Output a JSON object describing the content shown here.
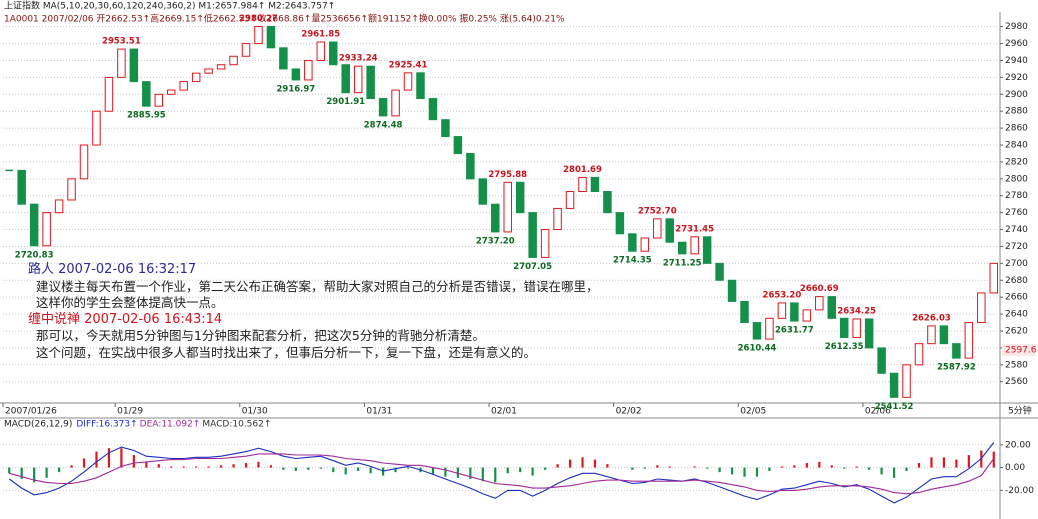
{
  "chart_data": [
    {
      "type": "candlestick",
      "title": "上证指数 MA(5,10,20,30,60,120,240,360,2) M1:2657.984↑ M2:2643.757↑",
      "subtitle": "1A0001 2007/02/06 开2662.53↑高2669.15↑低2662.53↑收2668.86↑量2536656↑额191152↑换0.00% 振0.25% 涨(5.64)0.21%",
      "categories": [
        "2007/01/26",
        null,
        null,
        null,
        null,
        null,
        null,
        null,
        null,
        "01/29",
        null,
        null,
        null,
        null,
        null,
        null,
        null,
        null,
        null,
        "01/30",
        null,
        null,
        null,
        null,
        null,
        null,
        null,
        null,
        null,
        "01/31",
        null,
        null,
        null,
        null,
        null,
        null,
        null,
        null,
        null,
        "02/01",
        null,
        null,
        null,
        null,
        null,
        null,
        null,
        null,
        null,
        "02/02",
        null,
        null,
        null,
        null,
        null,
        null,
        null,
        null,
        null,
        "02/05",
        null,
        null,
        null,
        null,
        null,
        null,
        null,
        null,
        null,
        "02/06",
        null,
        null,
        null,
        null,
        null,
        null,
        null,
        null,
        null,
        null
      ],
      "values": [
        2810,
        2770,
        2720.83,
        2760,
        2775,
        2800,
        2840,
        2880,
        2920,
        2953.51,
        2915,
        2885.95,
        2900,
        2905,
        2915,
        2925,
        2930,
        2935,
        2945,
        2960,
        2980.27,
        2955,
        2930,
        2916.97,
        2940,
        2961.85,
        2935,
        2901.91,
        2933.24,
        2895,
        2874.48,
        2905,
        2925.41,
        2895,
        2870,
        2850,
        2830,
        2800,
        2770,
        2737.2,
        2795.88,
        2760,
        2707.05,
        2740,
        2765,
        2785,
        2801.69,
        2785,
        2760,
        2735,
        2714.35,
        2730,
        2752.7,
        2725,
        2711.25,
        2731.45,
        2700,
        2680,
        2655,
        2630,
        2610.44,
        2635,
        2653.2,
        2631.77,
        2645,
        2660.69,
        2635,
        2612.35,
        2634.25,
        2600,
        2570,
        2541.52,
        2580,
        2605,
        2626.03,
        2605,
        2587.92,
        2630,
        2665,
        2700
      ],
      "up_color": "#e0161e",
      "down_color": "#14904a",
      "ylim": [
        2536,
        2995
      ],
      "yticks": [
        2560,
        2580,
        2600,
        2620,
        2640,
        2660,
        2680,
        2700,
        2720,
        2740,
        2760,
        2780,
        2800,
        2820,
        2840,
        2860,
        2880,
        2900,
        2920,
        2940,
        2960,
        2980
      ],
      "grid": true,
      "last_price": 2597.6,
      "period_label": "5分钟",
      "annotations": [
        {
          "x": 2,
          "y": 2720.83,
          "label": "2720.83",
          "color": "#0a6a1e"
        },
        {
          "x": 9,
          "y": 2953.51,
          "label": "2953.51",
          "color": "#c8141c"
        },
        {
          "x": 11,
          "y": 2885.95,
          "label": "2885.95",
          "color": "#0a6a1e"
        },
        {
          "x": 20,
          "y": 2980.27,
          "label": "2980.27",
          "color": "#c8141c"
        },
        {
          "x": 23,
          "y": 2916.97,
          "label": "2916.97",
          "color": "#0a6a1e"
        },
        {
          "x": 25,
          "y": 2961.85,
          "label": "2961.85",
          "color": "#c8141c"
        },
        {
          "x": 27,
          "y": 2901.91,
          "label": "2901.91",
          "color": "#0a6a1e"
        },
        {
          "x": 28,
          "y": 2933.24,
          "label": "2933.24",
          "color": "#c8141c"
        },
        {
          "x": 30,
          "y": 2874.48,
          "label": "2874.48",
          "color": "#0a6a1e"
        },
        {
          "x": 32,
          "y": 2925.41,
          "label": "2925.41",
          "color": "#c8141c"
        },
        {
          "x": 39,
          "y": 2737.2,
          "label": "2737.20",
          "color": "#0a6a1e"
        },
        {
          "x": 40,
          "y": 2795.88,
          "label": "2795.88",
          "color": "#c8141c"
        },
        {
          "x": 42,
          "y": 2707.05,
          "label": "2707.05",
          "color": "#0a6a1e"
        },
        {
          "x": 46,
          "y": 2801.69,
          "label": "2801.69",
          "color": "#c8141c"
        },
        {
          "x": 50,
          "y": 2714.35,
          "label": "2714.35",
          "color": "#0a6a1e"
        },
        {
          "x": 52,
          "y": 2752.7,
          "label": "2752.70",
          "color": "#c8141c"
        },
        {
          "x": 54,
          "y": 2711.25,
          "label": "2711.25",
          "color": "#0a6a1e"
        },
        {
          "x": 55,
          "y": 2731.45,
          "label": "2731.45",
          "color": "#c8141c"
        },
        {
          "x": 60,
          "y": 2610.44,
          "label": "2610.44",
          "color": "#0a6a1e"
        },
        {
          "x": 62,
          "y": 2653.2,
          "label": "2653.20",
          "color": "#c8141c"
        },
        {
          "x": 63,
          "y": 2631.77,
          "label": "2631.77",
          "color": "#0a6a1e"
        },
        {
          "x": 65,
          "y": 2660.69,
          "label": "2660.69",
          "color": "#c8141c"
        },
        {
          "x": 67,
          "y": 2612.35,
          "label": "2612.35",
          "color": "#0a6a1e"
        },
        {
          "x": 68,
          "y": 2634.25,
          "label": "2634.25",
          "color": "#c8141c"
        },
        {
          "x": 71,
          "y": 2541.52,
          "label": "2541.52",
          "color": "#0a6a1e"
        },
        {
          "x": 74,
          "y": 2626.03,
          "label": "2626.03",
          "color": "#c8141c"
        },
        {
          "x": 76,
          "y": 2587.92,
          "label": "2587.92",
          "color": "#0a6a1e"
        }
      ]
    },
    {
      "type": "macd",
      "title": "MACD(26,12,9)",
      "series": [
        {
          "name": "DIFF:16.373↑",
          "color": "#1a2fc0",
          "values": [
            -10,
            -18,
            -24,
            -22,
            -18,
            -12,
            -4,
            5,
            13,
            18,
            15,
            10,
            9,
            8,
            8,
            9,
            9,
            10,
            12,
            14,
            17,
            14,
            10,
            8,
            9,
            10,
            6,
            2,
            4,
            1,
            -3,
            -1,
            1,
            -2,
            -6,
            -10,
            -14,
            -18,
            -23,
            -27,
            -20,
            -20,
            -25,
            -20,
            -14,
            -9,
            -5,
            -5,
            -8,
            -11,
            -14,
            -13,
            -10,
            -11,
            -12,
            -10,
            -13,
            -17,
            -21,
            -25,
            -28,
            -24,
            -19,
            -18,
            -15,
            -12,
            -14,
            -17,
            -15,
            -19,
            -25,
            -31,
            -26,
            -18,
            -10,
            -8,
            -8,
            -1,
            8,
            22
          ]
        },
        {
          "name": "DEA:11.092↑",
          "color": "#a0289c",
          "values": [
            -5,
            -8,
            -11,
            -13,
            -14,
            -14,
            -12,
            -9,
            -4,
            1,
            4,
            5,
            6,
            7,
            7,
            8,
            8,
            8,
            9,
            10,
            12,
            12,
            12,
            11,
            11,
            11,
            10,
            8,
            7,
            6,
            4,
            3,
            2,
            2,
            0,
            -2,
            -5,
            -8,
            -11,
            -14,
            -15,
            -16,
            -18,
            -18,
            -17,
            -16,
            -14,
            -12,
            -11,
            -11,
            -12,
            -12,
            -12,
            -12,
            -12,
            -11,
            -12,
            -13,
            -15,
            -17,
            -20,
            -21,
            -20,
            -20,
            -19,
            -17,
            -16,
            -16,
            -16,
            -17,
            -19,
            -22,
            -23,
            -22,
            -19,
            -17,
            -15,
            -12,
            -7,
            8
          ]
        }
      ],
      "bars": {
        "name": "MACD:10.562↑",
        "up_color": "#e0161e",
        "down_color": "#14904a",
        "values": [
          -5,
          -10,
          -13,
          -9,
          -4,
          2,
          8,
          14,
          17,
          17,
          11,
          5,
          3,
          1,
          1,
          1,
          1,
          2,
          3,
          4,
          5,
          2,
          -2,
          -3,
          -2,
          -1,
          -4,
          -6,
          -3,
          -5,
          -7,
          -4,
          -1,
          -4,
          -6,
          -8,
          -9,
          -10,
          -12,
          -13,
          -5,
          -4,
          -7,
          -2,
          3,
          7,
          9,
          7,
          3,
          0,
          -2,
          -1,
          2,
          1,
          0,
          1,
          -1,
          -4,
          -6,
          -8,
          -8,
          -3,
          1,
          2,
          4,
          5,
          2,
          -1,
          1,
          -2,
          -6,
          -9,
          -3,
          4,
          9,
          9,
          7,
          11,
          15,
          14
        ]
      },
      "ylim": [
        -39,
        36.5
      ],
      "yticks": [
        {
          "value": 20,
          "label": "20.00"
        },
        {
          "value": 0,
          "label": "0.00"
        },
        {
          "value": -20,
          "label": "-20.00"
        }
      ],
      "grid": true
    }
  ],
  "comments": [
    {
      "heading": "路人 2007-02-06 16:32:17",
      "color": "#2a2a9a",
      "lines": [
        "建议楼主每天布置一个作业，第二天公布正确答案，帮助大家对照自己的分析是否错误，错误在哪里，",
        "这样你的学生会整体提高快一点。"
      ]
    },
    {
      "heading": "缠中说禅 2007-02-06 16:43:14",
      "color": "#d0141c",
      "lines": [
        "那可以，今天就用5分钟图与1分钟图来配套分析，把这次5分钟的背驰分析清楚。",
        "这个问题，在实战中很多人都当时找出来了，但事后分析一下，复一下盘，还是有意义的。"
      ]
    }
  ]
}
